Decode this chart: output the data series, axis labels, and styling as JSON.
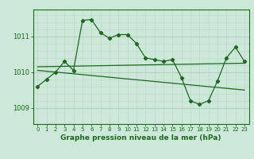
{
  "background_color": "#cce8d8",
  "grid_color_h": "#b0d4be",
  "grid_color_v": "#b8dcc8",
  "line_color": "#1a6b1a",
  "x_ticks": [
    0,
    1,
    2,
    3,
    4,
    5,
    6,
    7,
    8,
    9,
    10,
    11,
    12,
    13,
    14,
    15,
    16,
    17,
    18,
    19,
    20,
    21,
    22,
    23
  ],
  "y_ticks": [
    1009,
    1010,
    1011
  ],
  "ylim": [
    1008.55,
    1011.75
  ],
  "xlim": [
    -0.5,
    23.5
  ],
  "xlabel": "Graphe pression niveau de la mer (hPa)",
  "series1": {
    "x": [
      0,
      1,
      2,
      3,
      4,
      5,
      6,
      7,
      8,
      9,
      10,
      11,
      12,
      13,
      14,
      15,
      16,
      17,
      18,
      19,
      20,
      21,
      22,
      23
    ],
    "y": [
      1009.6,
      1009.8,
      1010.0,
      1010.3,
      1010.05,
      1011.45,
      1011.47,
      1011.1,
      1010.95,
      1011.05,
      1011.05,
      1010.8,
      1010.4,
      1010.35,
      1010.3,
      1010.35,
      1009.85,
      1009.2,
      1009.1,
      1009.2,
      1009.75,
      1010.4,
      1010.7,
      1010.3
    ]
  },
  "series2_line": {
    "x": [
      0,
      23
    ],
    "y": [
      1010.15,
      1010.25
    ]
  },
  "series3_line": {
    "x": [
      0,
      23
    ],
    "y": [
      1010.05,
      1009.5
    ]
  },
  "figsize": [
    3.2,
    2.0
  ],
  "dpi": 100
}
